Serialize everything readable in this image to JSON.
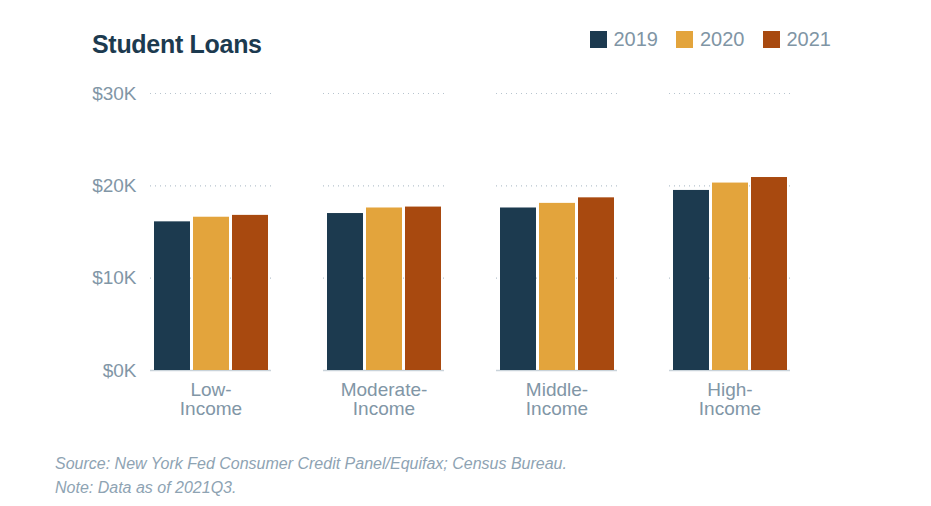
{
  "chart_data": {
    "type": "bar",
    "title": "Student Loans",
    "categories": [
      "Low-Income",
      "Moderate-Income",
      "Middle-Income",
      "High-Income"
    ],
    "series": [
      {
        "name": "2019",
        "color": "#1c3a4f",
        "values": [
          16.1,
          17.0,
          17.6,
          19.5
        ]
      },
      {
        "name": "2020",
        "color": "#e3a43c",
        "values": [
          16.6,
          17.6,
          18.1,
          20.3
        ]
      },
      {
        "name": "2021",
        "color": "#a8490f",
        "values": [
          16.8,
          17.7,
          18.7,
          20.9
        ]
      }
    ],
    "ylim": [
      0,
      30
    ],
    "yticks": [
      {
        "value": 0,
        "label": "$0K"
      },
      {
        "value": 10,
        "label": "$10K"
      },
      {
        "value": 20,
        "label": "$20K"
      },
      {
        "value": 30,
        "label": "$30K"
      }
    ],
    "grid": true,
    "legend": "top-right",
    "notes": [
      "Source: New York Fed Consumer Credit Panel/Equifax; Census Bureau.",
      "Note: Data as of 2021Q3."
    ]
  }
}
